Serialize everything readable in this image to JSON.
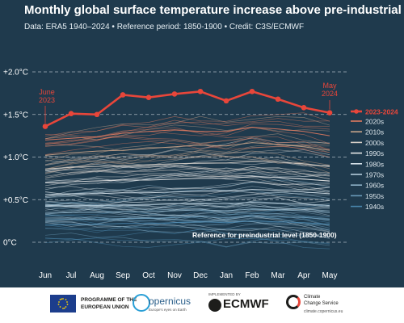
{
  "title": "Monthly global surface temperature increase above pre-industrial",
  "subtitle": "Data: ERA5 1940–2024  •  Reference period: 1850-1900  •  Credit: C3S/ECMWF",
  "colors": {
    "background": "#1f3a4d",
    "highlight": "#e8463a",
    "grid": "#c9d3da"
  },
  "chart_data": {
    "type": "line",
    "x": [
      "Jun",
      "Jul",
      "Aug",
      "Sep",
      "Oct",
      "Nov",
      "Dec",
      "Jan",
      "Feb",
      "Mar",
      "Apr",
      "May"
    ],
    "ylim": [
      -0.3,
      2.1
    ],
    "yticks": [
      {
        "value": 0.0,
        "label": "0°C"
      },
      {
        "value": 0.5,
        "label": "+0.5°C"
      },
      {
        "value": 1.0,
        "label": "+1.0°C"
      },
      {
        "value": 1.5,
        "label": "+1.5°C"
      },
      {
        "value": 2.0,
        "label": "+2.0°C"
      }
    ],
    "grid": "dashed horizontal",
    "legend_position": "right",
    "series": [
      {
        "name": "2023-2024",
        "color": "#e8463a",
        "values": [
          1.36,
          1.51,
          1.5,
          1.73,
          1.7,
          1.74,
          1.77,
          1.66,
          1.77,
          1.68,
          1.58,
          1.52
        ]
      },
      {
        "name": "2020s",
        "color": "#e07a5f",
        "values": [
          1.2,
          1.22,
          1.24,
          1.28,
          1.3,
          1.32,
          1.3,
          1.3,
          1.35,
          1.33,
          1.3,
          1.25
        ]
      },
      {
        "name": "2010s",
        "color": "#c9a48a",
        "values": [
          1.02,
          1.05,
          1.07,
          1.08,
          1.1,
          1.12,
          1.14,
          1.13,
          1.17,
          1.15,
          1.12,
          1.08
        ]
      },
      {
        "name": "2000s",
        "color": "#d8d0c8",
        "values": [
          0.86,
          0.88,
          0.89,
          0.9,
          0.91,
          0.92,
          0.93,
          0.93,
          0.95,
          0.94,
          0.92,
          0.89
        ]
      },
      {
        "name": "1990s",
        "color": "#e8e8e8",
        "values": [
          0.7,
          0.71,
          0.72,
          0.73,
          0.73,
          0.74,
          0.75,
          0.75,
          0.77,
          0.76,
          0.74,
          0.72
        ]
      },
      {
        "name": "1980s",
        "color": "#d6e2ea",
        "values": [
          0.56,
          0.57,
          0.57,
          0.58,
          0.58,
          0.59,
          0.6,
          0.6,
          0.62,
          0.61,
          0.59,
          0.57
        ]
      },
      {
        "name": "1970s",
        "color": "#b5ccda",
        "values": [
          0.42,
          0.43,
          0.43,
          0.44,
          0.44,
          0.45,
          0.46,
          0.45,
          0.47,
          0.46,
          0.45,
          0.43
        ]
      },
      {
        "name": "1960s",
        "color": "#8fb2c8",
        "values": [
          0.34,
          0.35,
          0.35,
          0.36,
          0.36,
          0.37,
          0.38,
          0.37,
          0.39,
          0.38,
          0.37,
          0.35
        ]
      },
      {
        "name": "1950s",
        "color": "#6a9ab8",
        "values": [
          0.26,
          0.27,
          0.27,
          0.28,
          0.28,
          0.29,
          0.3,
          0.29,
          0.31,
          0.3,
          0.29,
          0.27
        ]
      },
      {
        "name": "1940s",
        "color": "#4a86ad",
        "values": [
          0.2,
          0.21,
          0.21,
          0.22,
          0.22,
          0.23,
          0.24,
          0.23,
          0.25,
          0.24,
          0.23,
          0.21
        ]
      }
    ],
    "annotations": {
      "start": "June\n2023",
      "end": "May\n2024",
      "reference": "Reference for preindustrial level (1850-1900)"
    }
  },
  "footer": {
    "eu_text": "PROGRAMME OF THE\nEUROPEAN UNION",
    "copernicus": "opernicus",
    "copernicus_sub": "Europe's eyes on Earth",
    "ecmwf_small": "IMPLEMENTED BY",
    "ecmwf": "ECMWF",
    "c3s_text": "Climate\nChange Service",
    "c3s_url": "climate.copernicus.eu"
  }
}
